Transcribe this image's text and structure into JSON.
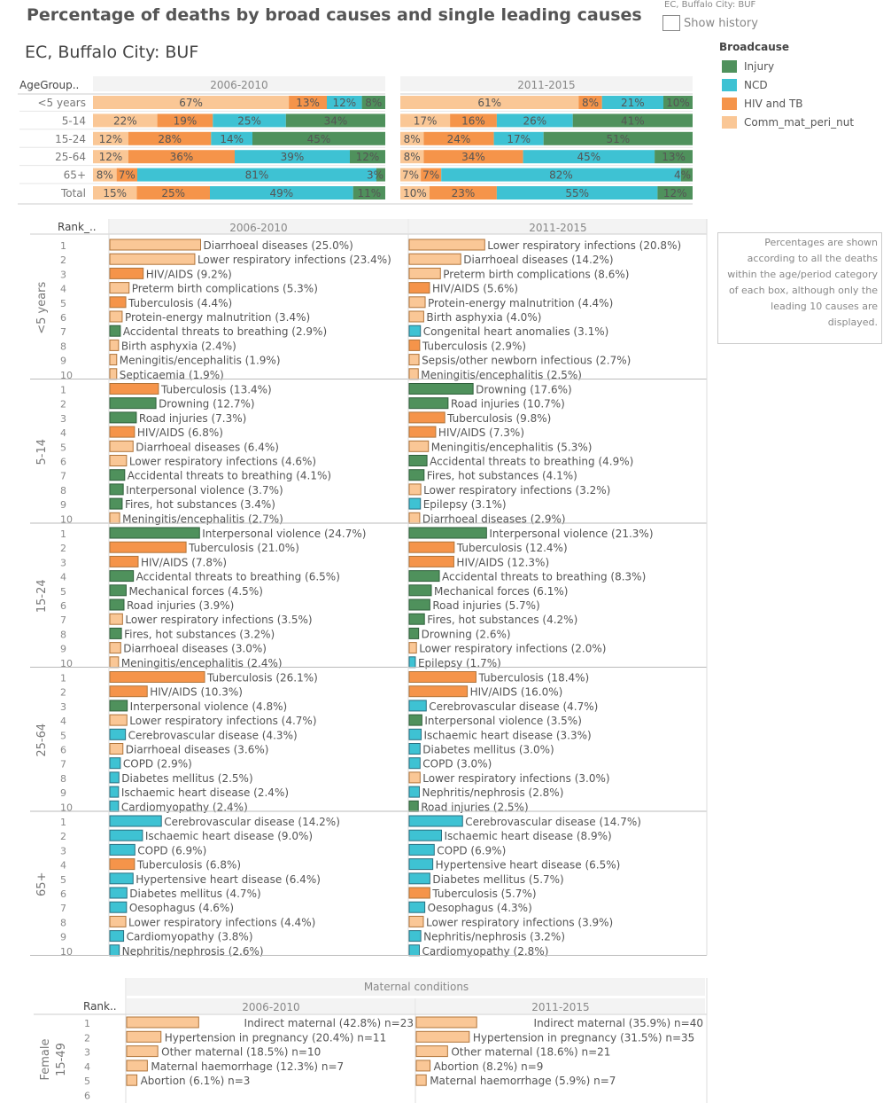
{
  "header": {
    "title": "Percentage of deaths by broad causes and single leading causes",
    "subtitle": "EC, Buffalo City: BUF",
    "region": "EC, Buffalo City: BUF",
    "show_history": "Show history"
  },
  "legend": {
    "title": "Broadcause",
    "items": [
      {
        "label": "Injury",
        "color": "#4f915c"
      },
      {
        "label": "NCD",
        "color": "#3ec2d3"
      },
      {
        "label": "HIV and TB",
        "color": "#f5944a"
      },
      {
        "label": "Comm_mat_peri_nut",
        "color": "#fac796"
      }
    ]
  },
  "note": "Percentages are shown according to all the deaths within the age/period category of each box, although only the leading 10 causes are displayed.",
  "colors": {
    "Injury": "#4f915c",
    "NCD": "#3ec2d3",
    "HIV": "#f5944a",
    "Comm": "#fac796"
  },
  "chart_data": [
    {
      "type": "bar",
      "stacked": "100%",
      "row_header": "AgeGroup..",
      "periods": [
        "2006-2010",
        "2011-2015"
      ],
      "categories": [
        "<5 years",
        "5-14",
        "15-24",
        "25-64",
        "65+",
        "Total"
      ],
      "series_order": [
        "Comm",
        "HIV",
        "NCD",
        "Injury"
      ],
      "series_names": {
        "Comm": "Comm_mat_peri_nut",
        "HIV": "HIV and TB",
        "NCD": "NCD",
        "Injury": "Injury"
      },
      "values": {
        "2006-2010": [
          {
            "Comm": 67,
            "HIV": 13,
            "NCD": 12,
            "Injury": 8
          },
          {
            "Comm": 22,
            "HIV": 19,
            "NCD": 25,
            "Injury": 34
          },
          {
            "Comm": 12,
            "HIV": 28,
            "NCD": 14,
            "Injury": 45
          },
          {
            "Comm": 12,
            "HIV": 36,
            "NCD": 39,
            "Injury": 12
          },
          {
            "Comm": 8,
            "HIV": 7,
            "NCD": 81,
            "Injury": 3
          },
          {
            "Comm": 15,
            "HIV": 25,
            "NCD": 49,
            "Injury": 11
          }
        ],
        "2011-2015": [
          {
            "Comm": 61,
            "HIV": 8,
            "NCD": 21,
            "Injury": 10
          },
          {
            "Comm": 17,
            "HIV": 16,
            "NCD": 26,
            "Injury": 41
          },
          {
            "Comm": 8,
            "HIV": 24,
            "NCD": 17,
            "Injury": 51
          },
          {
            "Comm": 8,
            "HIV": 34,
            "NCD": 45,
            "Injury": 13
          },
          {
            "Comm": 7,
            "HIV": 7,
            "NCD": 82,
            "Injury": 4
          },
          {
            "Comm": 10,
            "HIV": 23,
            "NCD": 55,
            "Injury": 12
          }
        ]
      }
    },
    {
      "type": "bar",
      "row_header": "Rank_..",
      "periods": [
        "2006-2010",
        "2011-2015"
      ],
      "groups": [
        {
          "age": "<5 years",
          "periods": [
            [
              {
                "n": "Diarrhoeal diseases",
                "v": 25.0,
                "t": "Comm"
              },
              {
                "n": "Lower respiratory infections",
                "v": 23.4,
                "t": "Comm"
              },
              {
                "n": "HIV/AIDS",
                "v": 9.2,
                "t": "HIV"
              },
              {
                "n": "Preterm birth complications",
                "v": 5.3,
                "t": "Comm"
              },
              {
                "n": "Tuberculosis",
                "v": 4.4,
                "t": "HIV"
              },
              {
                "n": "Protein-energy malnutrition",
                "v": 3.4,
                "t": "Comm"
              },
              {
                "n": "Accidental threats to breathing",
                "v": 2.9,
                "t": "Injury"
              },
              {
                "n": "Birth asphyxia",
                "v": 2.4,
                "t": "Comm"
              },
              {
                "n": "Meningitis/encephalitis",
                "v": 1.9,
                "t": "Comm"
              },
              {
                "n": "Septicaemia",
                "v": 1.9,
                "t": "Comm"
              }
            ],
            [
              {
                "n": "Lower respiratory infections",
                "v": 20.8,
                "t": "Comm"
              },
              {
                "n": "Diarrhoeal diseases",
                "v": 14.2,
                "t": "Comm"
              },
              {
                "n": "Preterm birth complications",
                "v": 8.6,
                "t": "Comm"
              },
              {
                "n": "HIV/AIDS",
                "v": 5.6,
                "t": "HIV"
              },
              {
                "n": "Protein-energy malnutrition",
                "v": 4.4,
                "t": "Comm"
              },
              {
                "n": "Birth asphyxia",
                "v": 4.0,
                "t": "Comm"
              },
              {
                "n": "Congenital heart anomalies",
                "v": 3.1,
                "t": "NCD"
              },
              {
                "n": "Tuberculosis",
                "v": 2.9,
                "t": "HIV"
              },
              {
                "n": "Sepsis/other newborn infectious",
                "v": 2.7,
                "t": "Comm"
              },
              {
                "n": "Meningitis/encephalitis",
                "v": 2.5,
                "t": "Comm"
              }
            ]
          ]
        },
        {
          "age": "5-14",
          "periods": [
            [
              {
                "n": "Tuberculosis",
                "v": 13.4,
                "t": "HIV"
              },
              {
                "n": "Drowning",
                "v": 12.7,
                "t": "Injury"
              },
              {
                "n": "Road injuries",
                "v": 7.3,
                "t": "Injury"
              },
              {
                "n": "HIV/AIDS",
                "v": 6.8,
                "t": "HIV"
              },
              {
                "n": "Diarrhoeal diseases",
                "v": 6.4,
                "t": "Comm"
              },
              {
                "n": "Lower respiratory infections",
                "v": 4.6,
                "t": "Comm"
              },
              {
                "n": "Accidental threats to breathing",
                "v": 4.1,
                "t": "Injury"
              },
              {
                "n": "Interpersonal violence",
                "v": 3.7,
                "t": "Injury"
              },
              {
                "n": "Fires, hot substances",
                "v": 3.4,
                "t": "Injury"
              },
              {
                "n": "Meningitis/encephalitis",
                "v": 2.7,
                "t": "Comm"
              }
            ],
            [
              {
                "n": "Drowning",
                "v": 17.6,
                "t": "Injury"
              },
              {
                "n": "Road injuries",
                "v": 10.7,
                "t": "Injury"
              },
              {
                "n": "Tuberculosis",
                "v": 9.8,
                "t": "HIV"
              },
              {
                "n": "HIV/AIDS",
                "v": 7.3,
                "t": "HIV"
              },
              {
                "n": "Meningitis/encephalitis",
                "v": 5.3,
                "t": "Comm"
              },
              {
                "n": "Accidental threats to breathing",
                "v": 4.9,
                "t": "Injury"
              },
              {
                "n": "Fires, hot substances",
                "v": 4.1,
                "t": "Injury"
              },
              {
                "n": "Lower respiratory infections",
                "v": 3.2,
                "t": "Comm"
              },
              {
                "n": "Epilepsy",
                "v": 3.1,
                "t": "NCD"
              },
              {
                "n": "Diarrhoeal diseases",
                "v": 2.9,
                "t": "Comm"
              }
            ]
          ]
        },
        {
          "age": "15-24",
          "periods": [
            [
              {
                "n": "Interpersonal violence",
                "v": 24.7,
                "t": "Injury"
              },
              {
                "n": "Tuberculosis",
                "v": 21.0,
                "t": "HIV"
              },
              {
                "n": "HIV/AIDS",
                "v": 7.8,
                "t": "HIV"
              },
              {
                "n": "Accidental threats to breathing",
                "v": 6.5,
                "t": "Injury"
              },
              {
                "n": "Mechanical forces",
                "v": 4.5,
                "t": "Injury"
              },
              {
                "n": "Road injuries",
                "v": 3.9,
                "t": "Injury"
              },
              {
                "n": "Lower respiratory infections",
                "v": 3.5,
                "t": "Comm"
              },
              {
                "n": "Fires, hot substances",
                "v": 3.2,
                "t": "Injury"
              },
              {
                "n": "Diarrhoeal diseases",
                "v": 3.0,
                "t": "Comm"
              },
              {
                "n": "Meningitis/encephalitis",
                "v": 2.4,
                "t": "Comm"
              }
            ],
            [
              {
                "n": "Interpersonal violence",
                "v": 21.3,
                "t": "Injury"
              },
              {
                "n": "Tuberculosis",
                "v": 12.4,
                "t": "HIV"
              },
              {
                "n": "HIV/AIDS",
                "v": 12.3,
                "t": "HIV"
              },
              {
                "n": "Accidental threats to breathing",
                "v": 8.3,
                "t": "Injury"
              },
              {
                "n": "Mechanical forces",
                "v": 6.1,
                "t": "Injury"
              },
              {
                "n": "Road injuries",
                "v": 5.7,
                "t": "Injury"
              },
              {
                "n": "Fires, hot substances",
                "v": 4.2,
                "t": "Injury"
              },
              {
                "n": "Drowning",
                "v": 2.6,
                "t": "Injury"
              },
              {
                "n": "Lower respiratory infections",
                "v": 2.0,
                "t": "Comm"
              },
              {
                "n": "Epilepsy",
                "v": 1.7,
                "t": "NCD"
              }
            ]
          ]
        },
        {
          "age": "25-64",
          "periods": [
            [
              {
                "n": "Tuberculosis",
                "v": 26.1,
                "t": "HIV"
              },
              {
                "n": "HIV/AIDS",
                "v": 10.3,
                "t": "HIV"
              },
              {
                "n": "Interpersonal violence",
                "v": 4.8,
                "t": "Injury"
              },
              {
                "n": "Lower respiratory infections",
                "v": 4.7,
                "t": "Comm"
              },
              {
                "n": "Cerebrovascular disease",
                "v": 4.3,
                "t": "NCD"
              },
              {
                "n": "Diarrhoeal diseases",
                "v": 3.6,
                "t": "Comm"
              },
              {
                "n": "COPD",
                "v": 2.9,
                "t": "NCD"
              },
              {
                "n": "Diabetes mellitus",
                "v": 2.5,
                "t": "NCD"
              },
              {
                "n": "Ischaemic heart disease",
                "v": 2.4,
                "t": "NCD"
              },
              {
                "n": "Cardiomyopathy",
                "v": 2.4,
                "t": "NCD"
              }
            ],
            [
              {
                "n": "Tuberculosis",
                "v": 18.4,
                "t": "HIV"
              },
              {
                "n": "HIV/AIDS",
                "v": 16.0,
                "t": "HIV"
              },
              {
                "n": "Cerebrovascular disease",
                "v": 4.7,
                "t": "NCD"
              },
              {
                "n": "Interpersonal violence",
                "v": 3.5,
                "t": "Injury"
              },
              {
                "n": "Ischaemic heart disease",
                "v": 3.3,
                "t": "NCD"
              },
              {
                "n": "Diabetes mellitus",
                "v": 3.0,
                "t": "NCD"
              },
              {
                "n": "COPD",
                "v": 3.0,
                "t": "NCD"
              },
              {
                "n": "Lower respiratory infections",
                "v": 3.0,
                "t": "Comm"
              },
              {
                "n": "Nephritis/nephrosis",
                "v": 2.8,
                "t": "NCD"
              },
              {
                "n": "Road injuries",
                "v": 2.5,
                "t": "Injury"
              }
            ]
          ]
        },
        {
          "age": "65+",
          "periods": [
            [
              {
                "n": "Cerebrovascular disease",
                "v": 14.2,
                "t": "NCD"
              },
              {
                "n": "Ischaemic heart disease",
                "v": 9.0,
                "t": "NCD"
              },
              {
                "n": "COPD",
                "v": 6.9,
                "t": "NCD"
              },
              {
                "n": "Tuberculosis",
                "v": 6.8,
                "t": "HIV"
              },
              {
                "n": "Hypertensive heart disease",
                "v": 6.4,
                "t": "NCD"
              },
              {
                "n": "Diabetes mellitus",
                "v": 4.7,
                "t": "NCD"
              },
              {
                "n": "Oesophagus",
                "v": 4.6,
                "t": "NCD"
              },
              {
                "n": "Lower respiratory infections",
                "v": 4.4,
                "t": "Comm"
              },
              {
                "n": "Cardiomyopathy",
                "v": 3.8,
                "t": "NCD"
              },
              {
                "n": "Nephritis/nephrosis",
                "v": 2.6,
                "t": "NCD"
              }
            ],
            [
              {
                "n": "Cerebrovascular disease",
                "v": 14.7,
                "t": "NCD"
              },
              {
                "n": "Ischaemic heart disease",
                "v": 8.9,
                "t": "NCD"
              },
              {
                "n": "COPD",
                "v": 6.9,
                "t": "NCD"
              },
              {
                "n": "Hypertensive heart disease",
                "v": 6.5,
                "t": "NCD"
              },
              {
                "n": "Diabetes mellitus",
                "v": 5.7,
                "t": "NCD"
              },
              {
                "n": "Tuberculosis",
                "v": 5.7,
                "t": "HIV"
              },
              {
                "n": "Oesophagus",
                "v": 4.3,
                "t": "NCD"
              },
              {
                "n": "Lower respiratory infections",
                "v": 3.9,
                "t": "Comm"
              },
              {
                "n": "Nephritis/nephrosis",
                "v": 3.2,
                "t": "NCD"
              },
              {
                "n": "Cardiomyopathy",
                "v": 2.8,
                "t": "NCD"
              }
            ]
          ]
        }
      ]
    },
    {
      "type": "bar",
      "title": "Maternal conditions",
      "row_header": "Rank..",
      "periods": [
        "2006-2010",
        "2011-2015"
      ],
      "group_label_1": "Female",
      "group_label_2": "15-49",
      "ranks": 6,
      "items": [
        [
          {
            "n": "Indirect maternal",
            "v": 42.8,
            "c": "n=23"
          },
          {
            "n": "Hypertension in pregnancy",
            "v": 20.4,
            "c": "n=11"
          },
          {
            "n": "Other maternal",
            "v": 18.5,
            "c": "n=10"
          },
          {
            "n": "Maternal haemorrhage",
            "v": 12.3,
            "c": "n=7"
          },
          {
            "n": "Abortion",
            "v": 6.1,
            "c": "n=3"
          }
        ],
        [
          {
            "n": "Indirect maternal",
            "v": 35.9,
            "c": "n=40"
          },
          {
            "n": "Hypertension in pregnancy",
            "v": 31.5,
            "c": "n=35"
          },
          {
            "n": "Other maternal",
            "v": 18.6,
            "c": "n=21"
          },
          {
            "n": "Abortion",
            "v": 8.2,
            "c": "n=9"
          },
          {
            "n": "Maternal haemorrhage",
            "v": 5.9,
            "c": "n=7"
          }
        ]
      ]
    }
  ]
}
